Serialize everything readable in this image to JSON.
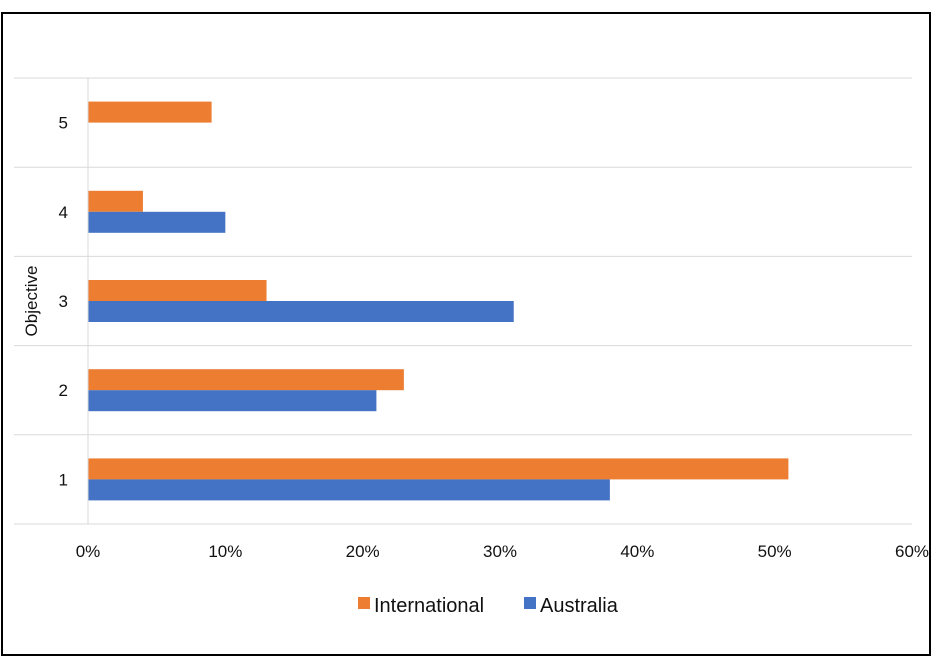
{
  "chart_data": {
    "type": "bar",
    "orientation": "horizontal",
    "categories": [
      "1",
      "2",
      "3",
      "4",
      "5"
    ],
    "series": [
      {
        "name": "International",
        "color": "#ED7D31",
        "values": [
          0.51,
          0.23,
          0.13,
          0.04,
          0.09
        ]
      },
      {
        "name": "Australia",
        "color": "#4472C4",
        "values": [
          0.38,
          0.21,
          0.31,
          0.1,
          null
        ]
      }
    ],
    "xticks": [
      "0%",
      "10%",
      "20%",
      "30%",
      "40%",
      "50%",
      "60%"
    ],
    "xlim": [
      0,
      0.6
    ],
    "ylabel": "Objective",
    "xlabel": "",
    "grid": true,
    "legend_position": "bottom"
  }
}
